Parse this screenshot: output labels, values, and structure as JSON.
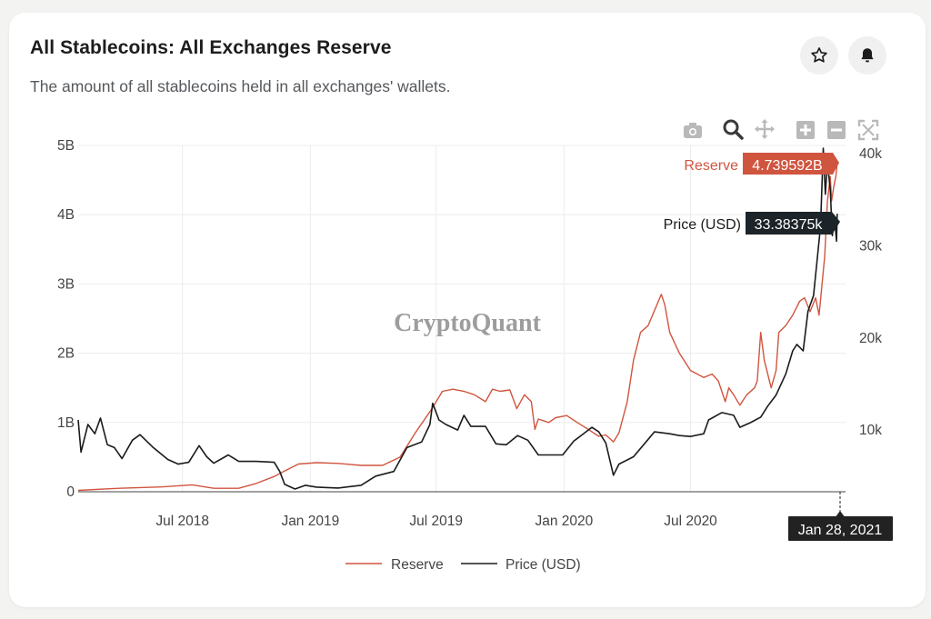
{
  "header": {
    "title": "All Stablecoins: All Exchanges Reserve",
    "subtitle": "The amount of all stablecoins held in all exchanges' wallets."
  },
  "actions": {
    "star_icon": "star-icon",
    "bell_icon": "bell-icon"
  },
  "toolbar": [
    "camera-icon",
    "zoom-icon",
    "pan-icon",
    "zoom-in-icon",
    "zoom-out-icon",
    "autoscale-icon"
  ],
  "watermark": "CryptoQuant",
  "colors": {
    "reserve": "#d0553f",
    "price": "#1b1b1b",
    "tooltip_date_bg": "#222222"
  },
  "hover": {
    "reserve_label": "Reserve",
    "reserve_value": "4.739592B",
    "price_label": "Price (USD)",
    "price_value": "33.38375k",
    "date": "Jan 28, 2021"
  },
  "chart_data": {
    "type": "line",
    "title": "All Stablecoins: All Exchanges Reserve",
    "x_ticks": [
      "Jul 2018",
      "Jan 2019",
      "Jul 2019",
      "Jan 2020",
      "Jul 2020"
    ],
    "x_tick_dates": [
      "2018-07-01",
      "2019-01-01",
      "2019-07-01",
      "2020-01-01",
      "2020-07-01"
    ],
    "xlim": [
      "2018-02-01",
      "2021-02-09"
    ],
    "y_left": {
      "ticks": [
        "0",
        "1B",
        "2B",
        "3B",
        "4B",
        "5B"
      ],
      "values": [
        0,
        1,
        2,
        3,
        4,
        5
      ],
      "range": [
        0,
        5
      ],
      "unit": "B"
    },
    "y_right": {
      "ticks": [
        "10k",
        "20k",
        "30k",
        "40k"
      ],
      "values": [
        10,
        20,
        30,
        40
      ],
      "range": [
        3.2,
        40.8
      ],
      "unit": "k"
    },
    "legend": [
      "Reserve",
      "Price (USD)"
    ],
    "legend_position": "bottom-center",
    "series": [
      {
        "name": "Reserve",
        "axis": "left",
        "points": [
          [
            "2018-02-01",
            0.02
          ],
          [
            "2018-04-01",
            0.05
          ],
          [
            "2018-06-01",
            0.07
          ],
          [
            "2018-07-15",
            0.1
          ],
          [
            "2018-08-15",
            0.05
          ],
          [
            "2018-09-20",
            0.05
          ],
          [
            "2018-10-15",
            0.12
          ],
          [
            "2018-11-10",
            0.22
          ],
          [
            "2018-11-25",
            0.3
          ],
          [
            "2018-12-15",
            0.4
          ],
          [
            "2019-01-10",
            0.42
          ],
          [
            "2019-02-10",
            0.41
          ],
          [
            "2019-03-15",
            0.38
          ],
          [
            "2019-04-15",
            0.38
          ],
          [
            "2019-05-10",
            0.5
          ],
          [
            "2019-06-01",
            0.85
          ],
          [
            "2019-06-25",
            1.2
          ],
          [
            "2019-07-10",
            1.45
          ],
          [
            "2019-07-25",
            1.48
          ],
          [
            "2019-08-10",
            1.45
          ],
          [
            "2019-08-25",
            1.4
          ],
          [
            "2019-09-10",
            1.3
          ],
          [
            "2019-09-20",
            1.48
          ],
          [
            "2019-10-01",
            1.45
          ],
          [
            "2019-10-15",
            1.47
          ],
          [
            "2019-10-25",
            1.2
          ],
          [
            "2019-11-05",
            1.4
          ],
          [
            "2019-11-15",
            1.3
          ],
          [
            "2019-11-20",
            0.9
          ],
          [
            "2019-11-25",
            1.05
          ],
          [
            "2019-12-10",
            1.0
          ],
          [
            "2019-12-20",
            1.07
          ],
          [
            "2020-01-05",
            1.1
          ],
          [
            "2020-01-20",
            1.0
          ],
          [
            "2020-02-05",
            0.9
          ],
          [
            "2020-02-20",
            0.8
          ],
          [
            "2020-03-01",
            0.82
          ],
          [
            "2020-03-12",
            0.72
          ],
          [
            "2020-03-20",
            0.85
          ],
          [
            "2020-04-01",
            1.3
          ],
          [
            "2020-04-10",
            1.9
          ],
          [
            "2020-04-20",
            2.3
          ],
          [
            "2020-05-01",
            2.4
          ],
          [
            "2020-05-20",
            2.85
          ],
          [
            "2020-05-25",
            2.7
          ],
          [
            "2020-06-01",
            2.3
          ],
          [
            "2020-06-15",
            2.0
          ],
          [
            "2020-07-01",
            1.75
          ],
          [
            "2020-07-20",
            1.65
          ],
          [
            "2020-08-01",
            1.7
          ],
          [
            "2020-08-10",
            1.6
          ],
          [
            "2020-08-20",
            1.3
          ],
          [
            "2020-08-25",
            1.5
          ],
          [
            "2020-09-01",
            1.4
          ],
          [
            "2020-09-10",
            1.25
          ],
          [
            "2020-09-20",
            1.4
          ],
          [
            "2020-10-01",
            1.5
          ],
          [
            "2020-10-05",
            1.6
          ],
          [
            "2020-10-10",
            2.3
          ],
          [
            "2020-10-15",
            1.9
          ],
          [
            "2020-10-25",
            1.5
          ],
          [
            "2020-11-01",
            1.75
          ],
          [
            "2020-11-05",
            2.3
          ],
          [
            "2020-11-15",
            2.4
          ],
          [
            "2020-11-25",
            2.55
          ],
          [
            "2020-12-05",
            2.75
          ],
          [
            "2020-12-12",
            2.8
          ],
          [
            "2020-12-20",
            2.6
          ],
          [
            "2020-12-28",
            2.8
          ],
          [
            "2021-01-02",
            2.55
          ],
          [
            "2021-01-10",
            3.4
          ],
          [
            "2021-01-14",
            4.2
          ],
          [
            "2021-01-18",
            4.55
          ],
          [
            "2021-01-20",
            4.2
          ],
          [
            "2021-01-23",
            4.4
          ],
          [
            "2021-01-26",
            4.55
          ],
          [
            "2021-01-28",
            4.74
          ]
        ]
      },
      {
        "name": "Price (USD)",
        "axis": "right",
        "points": [
          [
            "2018-02-01",
            11.0
          ],
          [
            "2018-02-05",
            7.5
          ],
          [
            "2018-02-15",
            10.5
          ],
          [
            "2018-02-25",
            9.5
          ],
          [
            "2018-03-05",
            11.2
          ],
          [
            "2018-03-15",
            8.3
          ],
          [
            "2018-03-25",
            8.0
          ],
          [
            "2018-04-05",
            6.8
          ],
          [
            "2018-04-20",
            8.8
          ],
          [
            "2018-05-01",
            9.4
          ],
          [
            "2018-05-20",
            8.0
          ],
          [
            "2018-06-10",
            6.7
          ],
          [
            "2018-06-25",
            6.2
          ],
          [
            "2018-07-10",
            6.4
          ],
          [
            "2018-07-25",
            8.2
          ],
          [
            "2018-08-05",
            7.0
          ],
          [
            "2018-08-15",
            6.3
          ],
          [
            "2018-09-05",
            7.2
          ],
          [
            "2018-09-20",
            6.5
          ],
          [
            "2018-10-15",
            6.5
          ],
          [
            "2018-11-10",
            6.4
          ],
          [
            "2018-11-18",
            5.4
          ],
          [
            "2018-11-25",
            4.0
          ],
          [
            "2018-12-10",
            3.5
          ],
          [
            "2018-12-25",
            3.9
          ],
          [
            "2019-01-10",
            3.7
          ],
          [
            "2019-02-10",
            3.6
          ],
          [
            "2019-03-15",
            3.9
          ],
          [
            "2019-04-05",
            4.9
          ],
          [
            "2019-05-01",
            5.4
          ],
          [
            "2019-05-20",
            8.0
          ],
          [
            "2019-06-10",
            8.6
          ],
          [
            "2019-06-22",
            10.5
          ],
          [
            "2019-06-26",
            12.8
          ],
          [
            "2019-07-05",
            11.0
          ],
          [
            "2019-07-15",
            10.5
          ],
          [
            "2019-08-01",
            9.9
          ],
          [
            "2019-08-10",
            11.5
          ],
          [
            "2019-08-20",
            10.3
          ],
          [
            "2019-09-10",
            10.3
          ],
          [
            "2019-09-25",
            8.4
          ],
          [
            "2019-10-10",
            8.3
          ],
          [
            "2019-10-26",
            9.3
          ],
          [
            "2019-11-10",
            8.8
          ],
          [
            "2019-11-25",
            7.2
          ],
          [
            "2019-12-15",
            7.2
          ],
          [
            "2019-12-30",
            7.2
          ],
          [
            "2020-01-15",
            8.7
          ],
          [
            "2020-02-10",
            10.2
          ],
          [
            "2020-02-20",
            9.7
          ],
          [
            "2020-03-01",
            8.5
          ],
          [
            "2020-03-12",
            5.0
          ],
          [
            "2020-03-20",
            6.2
          ],
          [
            "2020-04-10",
            7.0
          ],
          [
            "2020-04-30",
            8.8
          ],
          [
            "2020-05-10",
            9.7
          ],
          [
            "2020-06-01",
            9.5
          ],
          [
            "2020-06-15",
            9.3
          ],
          [
            "2020-07-01",
            9.2
          ],
          [
            "2020-07-20",
            9.5
          ],
          [
            "2020-07-27",
            11.0
          ],
          [
            "2020-08-15",
            11.8
          ],
          [
            "2020-09-01",
            11.5
          ],
          [
            "2020-09-10",
            10.2
          ],
          [
            "2020-09-25",
            10.7
          ],
          [
            "2020-10-10",
            11.3
          ],
          [
            "2020-10-20",
            12.5
          ],
          [
            "2020-11-01",
            13.7
          ],
          [
            "2020-11-15",
            16.0
          ],
          [
            "2020-11-25",
            18.5
          ],
          [
            "2020-12-01",
            19.2
          ],
          [
            "2020-12-10",
            18.5
          ],
          [
            "2020-12-17",
            22.8
          ],
          [
            "2020-12-25",
            24.5
          ],
          [
            "2020-12-31",
            29.0
          ],
          [
            "2021-01-04",
            32.0
          ],
          [
            "2021-01-08",
            40.5
          ],
          [
            "2021-01-11",
            35.5
          ],
          [
            "2021-01-14",
            39.0
          ],
          [
            "2021-01-18",
            36.0
          ],
          [
            "2021-01-21",
            31.0
          ],
          [
            "2021-01-24",
            33.0
          ],
          [
            "2021-01-27",
            30.4
          ],
          [
            "2021-01-28",
            33.38
          ]
        ]
      }
    ]
  }
}
